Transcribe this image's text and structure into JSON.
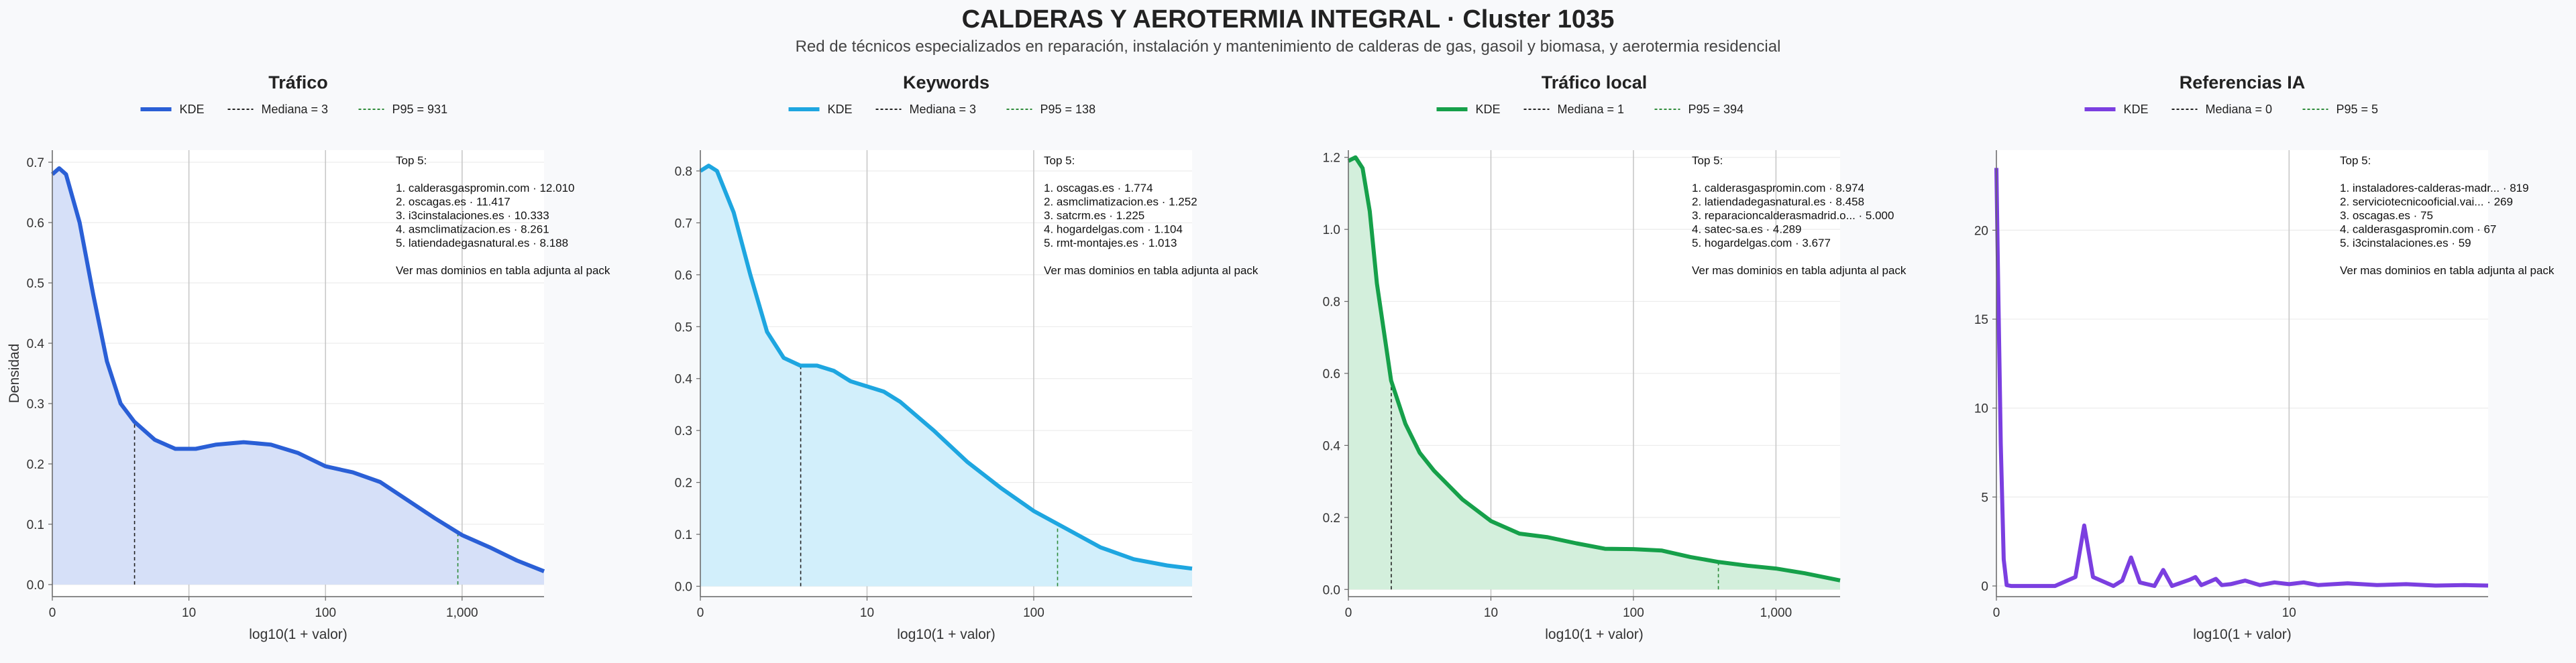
{
  "title": "CALDERAS Y AEROTERMIA INTEGRAL · Cluster 1035",
  "subtitle": "Red de técnicos especializados en reparación, instalación y mantenimiento de calderas de gas, gasoil y biomasa, y aerotermia residencial",
  "colors": {
    "trafico": "#2a5fd6",
    "keywords": "#1ea6e0",
    "trafico_local": "#16a04a",
    "referencias_ia": "#7b3fe0",
    "median": "#222222",
    "p95": "#2e8b3a",
    "grid": "#dcdcdc",
    "decade_line": "#c8c8c8"
  },
  "chart_data": [
    {
      "type": "area",
      "title": "Tráfico",
      "xlabel": "log10(1 + valor)",
      "ylabel": "Densidad",
      "xlim": [
        0,
        3.6
      ],
      "ylim": [
        -0.02,
        0.72
      ],
      "x_ticks": [
        0,
        1,
        2,
        3
      ],
      "x_tick_labels": [
        "0",
        "10",
        "100",
        "1,000"
      ],
      "y_ticks": [
        0,
        0.1,
        0.2,
        0.3,
        0.4,
        0.5,
        0.6,
        0.7
      ],
      "y_tick_labels": [
        "0.0",
        "0.1",
        "0.2",
        "0.3",
        "0.4",
        "0.5",
        "0.6",
        "0.7"
      ],
      "grid": "horizontal",
      "legend_position": "top-center",
      "legend": [
        "KDE",
        "Mediana = 3",
        "P95 = 931"
      ],
      "color_key": "trafico",
      "fill": "#d6e0f8",
      "median_x": 0.602,
      "p95_x": 2.969,
      "kde_x": [
        0,
        0.05,
        0.1,
        0.2,
        0.3,
        0.4,
        0.5,
        0.6,
        0.75,
        0.9,
        1.05,
        1.2,
        1.4,
        1.6,
        1.8,
        2.0,
        2.2,
        2.4,
        2.6,
        2.8,
        3.0,
        3.2,
        3.4,
        3.6
      ],
      "kde_y": [
        0.68,
        0.69,
        0.68,
        0.6,
        0.48,
        0.37,
        0.3,
        0.27,
        0.24,
        0.225,
        0.225,
        0.232,
        0.236,
        0.232,
        0.218,
        0.196,
        0.186,
        0.17,
        0.14,
        0.11,
        0.082,
        0.062,
        0.04,
        0.022
      ],
      "notes": [
        "Top 5:",
        "",
        "1. calderasgaspromin.com · 12.010",
        "2. oscagas.es · 11.417",
        "3. i3cinstalaciones.es · 10.333",
        "4. asmclimatizacion.es · 8.261",
        "5. latiendadegasnatural.es · 8.188",
        "",
        "Ver mas dominios en tabla adjunta al pack"
      ]
    },
    {
      "type": "area",
      "title": "Keywords",
      "xlabel": "log10(1 + valor)",
      "ylabel": "",
      "xlim": [
        0,
        2.95
      ],
      "ylim": [
        -0.02,
        0.84
      ],
      "x_ticks": [
        0,
        1,
        2
      ],
      "x_tick_labels": [
        "0",
        "10",
        "100"
      ],
      "y_ticks": [
        0,
        0.1,
        0.2,
        0.3,
        0.4,
        0.5,
        0.6,
        0.7,
        0.8
      ],
      "y_tick_labels": [
        "0.0",
        "0.1",
        "0.2",
        "0.3",
        "0.4",
        "0.5",
        "0.6",
        "0.7",
        "0.8"
      ],
      "grid": "horizontal",
      "legend_position": "top-center",
      "legend": [
        "KDE",
        "Mediana = 3",
        "P95 = 138"
      ],
      "color_key": "keywords",
      "fill": "#d2effb",
      "median_x": 0.602,
      "p95_x": 2.143,
      "kde_x": [
        0,
        0.05,
        0.1,
        0.2,
        0.3,
        0.4,
        0.5,
        0.6,
        0.7,
        0.8,
        0.9,
        1.0,
        1.1,
        1.2,
        1.4,
        1.6,
        1.8,
        2.0,
        2.2,
        2.4,
        2.6,
        2.8,
        2.95
      ],
      "kde_y": [
        0.8,
        0.81,
        0.8,
        0.72,
        0.6,
        0.49,
        0.44,
        0.425,
        0.425,
        0.415,
        0.395,
        0.385,
        0.375,
        0.355,
        0.3,
        0.24,
        0.19,
        0.145,
        0.11,
        0.075,
        0.052,
        0.04,
        0.034
      ],
      "notes": [
        "Top 5:",
        "",
        "1. oscagas.es · 1.774",
        "2. asmclimatizacion.es · 1.252",
        "3. satcrm.es · 1.225",
        "4. hogardelgas.com · 1.104",
        "5. rmt-montajes.es · 1.013",
        "",
        "Ver mas dominios en tabla adjunta al pack"
      ]
    },
    {
      "type": "area",
      "title": "Tráfico local",
      "xlabel": "log10(1 + valor)",
      "ylabel": "",
      "xlim": [
        0,
        3.45
      ],
      "ylim": [
        -0.02,
        1.22
      ],
      "x_ticks": [
        0,
        1,
        2,
        3
      ],
      "x_tick_labels": [
        "0",
        "10",
        "100",
        "1,000"
      ],
      "y_ticks": [
        0,
        0.2,
        0.4,
        0.6,
        0.8,
        1.0,
        1.2
      ],
      "y_tick_labels": [
        "0.0",
        "0.2",
        "0.4",
        "0.6",
        "0.8",
        "1.0",
        "1.2"
      ],
      "grid": "horizontal",
      "legend_position": "top-center",
      "legend": [
        "KDE",
        "Mediana = 1",
        "P95 = 394"
      ],
      "color_key": "trafico_local",
      "fill": "#d3efdc",
      "median_x": 0.301,
      "p95_x": 2.596,
      "kde_x": [
        0,
        0.05,
        0.1,
        0.15,
        0.2,
        0.3,
        0.4,
        0.5,
        0.6,
        0.8,
        1.0,
        1.2,
        1.4,
        1.6,
        1.8,
        2.0,
        2.2,
        2.4,
        2.6,
        2.8,
        3.0,
        3.2,
        3.45
      ],
      "kde_y": [
        1.19,
        1.2,
        1.17,
        1.05,
        0.85,
        0.58,
        0.46,
        0.38,
        0.33,
        0.25,
        0.19,
        0.155,
        0.145,
        0.128,
        0.113,
        0.112,
        0.108,
        0.09,
        0.076,
        0.066,
        0.058,
        0.045,
        0.025
      ],
      "notes": [
        "Top 5:",
        "",
        "1. calderasgaspromin.com · 8.974",
        "2. latiendadegasnatural.es · 8.458",
        "3. reparacioncalderasmadrid.o... · 5.000",
        "4. satec-sa.es · 4.289",
        "5. hogardelgas.com · 3.677",
        "",
        "Ver mas dominios en tabla adjunta al pack"
      ]
    },
    {
      "type": "line",
      "title": "Referencias IA",
      "xlabel": "log10(1 + valor)",
      "ylabel": "",
      "xlim": [
        0,
        1.68
      ],
      "ylim": [
        -0.6,
        24.5
      ],
      "x_ticks": [
        0,
        1
      ],
      "x_tick_labels": [
        "0",
        "10"
      ],
      "y_ticks": [
        0,
        5,
        10,
        15,
        20
      ],
      "y_tick_labels": [
        "0",
        "5",
        "10",
        "15",
        "20"
      ],
      "grid": "horizontal",
      "legend_position": "top-center",
      "legend": [
        "KDE",
        "Mediana = 0",
        "P95 = 5"
      ],
      "color_key": "referencias_ia",
      "fill": "none",
      "median_x": 0,
      "p95_x": 0.778,
      "kde_x": [
        0,
        0.005,
        0.015,
        0.025,
        0.035,
        0.05,
        0.2,
        0.27,
        0.3,
        0.33,
        0.4,
        0.43,
        0.46,
        0.49,
        0.54,
        0.57,
        0.6,
        0.66,
        0.68,
        0.7,
        0.73,
        0.75,
        0.77,
        0.8,
        0.85,
        0.9,
        0.95,
        1.0,
        1.05,
        1.1,
        1.2,
        1.3,
        1.4,
        1.5,
        1.6,
        1.68
      ],
      "kde_y": [
        23.5,
        18,
        8,
        1.5,
        0.05,
        0,
        0,
        0.5,
        3.4,
        0.5,
        0,
        0.3,
        1.6,
        0.2,
        0,
        0.9,
        0,
        0.35,
        0.5,
        0.05,
        0.25,
        0.4,
        0.05,
        0.1,
        0.3,
        0.05,
        0.2,
        0.1,
        0.2,
        0.05,
        0.15,
        0.05,
        0.1,
        0.02,
        0.05,
        0.02
      ],
      "notes": [
        "Top 5:",
        "",
        "1. instaladores-calderas-madr... · 819",
        "2. serviciotecnicooficial.vai... · 269",
        "3. oscagas.es · 75",
        "4. calderasgaspromin.com · 67",
        "5. i3cinstalaciones.es · 59",
        "",
        "Ver mas dominios en tabla adjunta al pack"
      ]
    }
  ]
}
